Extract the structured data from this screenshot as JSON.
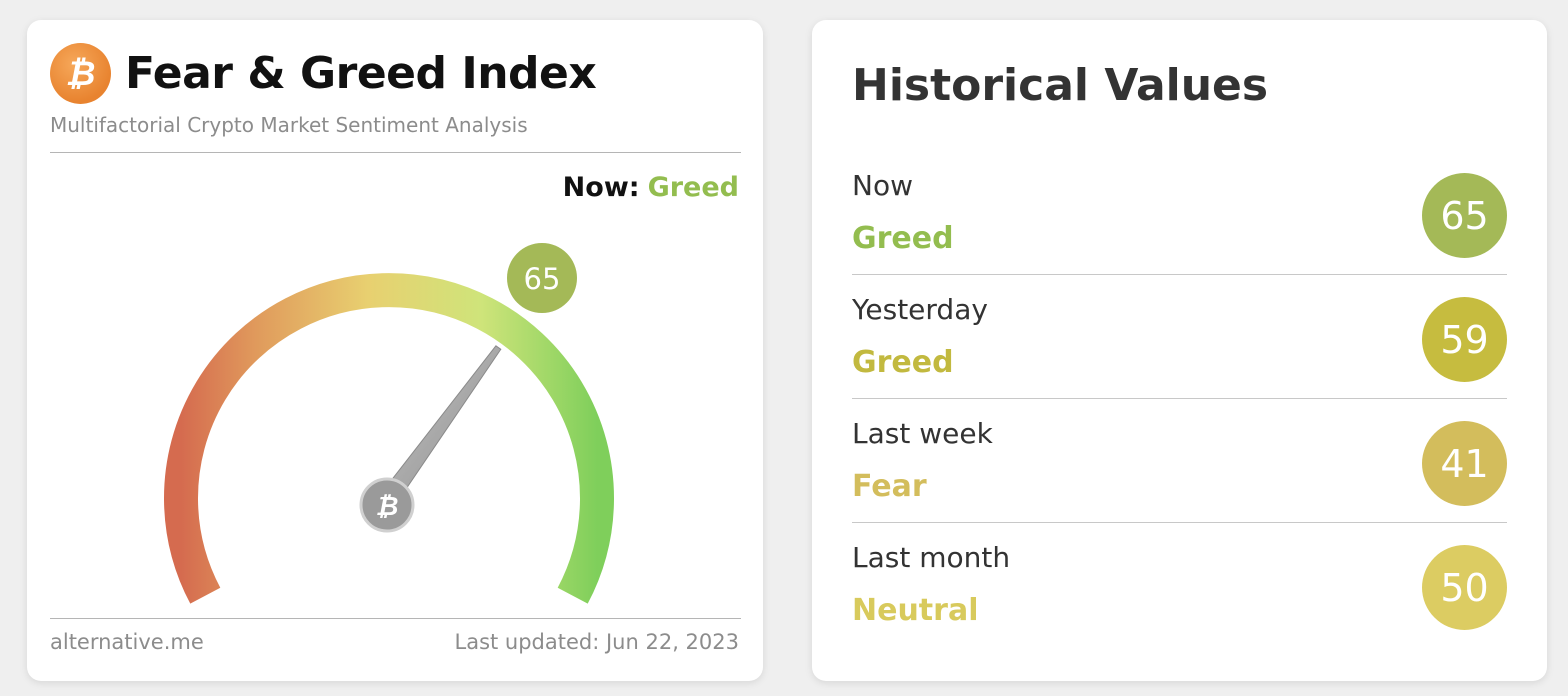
{
  "index_card": {
    "title": "Fear & Greed Index",
    "subtitle": "Multifactorial Crypto Market Sentiment Analysis",
    "logo_icon": "bitcoin-icon",
    "logo_glyph": "₿",
    "now_label": "Now:",
    "now_value": "Greed",
    "score": "65",
    "score_value": 65,
    "score_color": "#a4b957",
    "footer_source": "alternative.me",
    "footer_updated": "Last updated: Jun 22, 2023"
  },
  "historical": {
    "title": "Historical Values",
    "rows": [
      {
        "period": "Now",
        "classification": "Greed",
        "value": "65",
        "color": "#a4b957"
      },
      {
        "period": "Yesterday",
        "classification": "Greed",
        "value": "59",
        "color": "#c6bc3f"
      },
      {
        "period": "Last week",
        "classification": "Fear",
        "value": "41",
        "color": "#d3bd5c"
      },
      {
        "period": "Last month",
        "classification": "Neutral",
        "value": "50",
        "color": "#dccc62"
      }
    ]
  },
  "colors": {
    "greed_text": "#93bd4f",
    "greed_text_yesterday": "#c2b93f",
    "fear_text": "#d3bd5c",
    "neutral_text": "#d8ca5c"
  }
}
